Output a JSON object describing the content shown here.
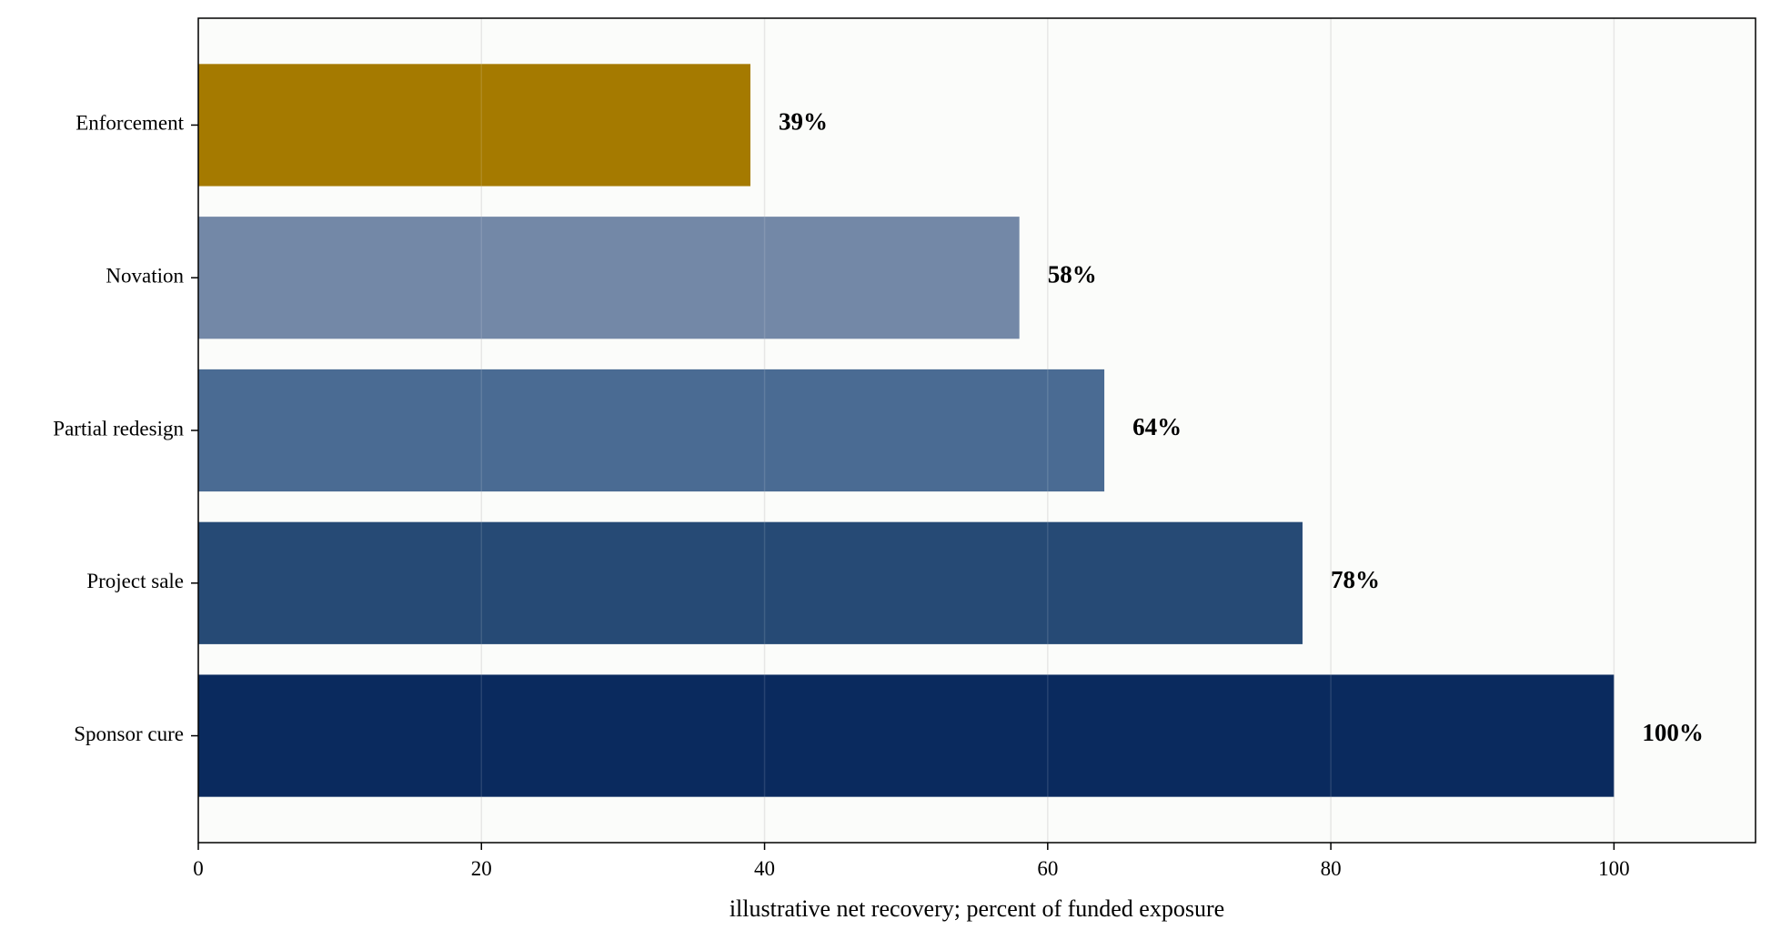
{
  "chart_data": {
    "type": "bar",
    "orientation": "horizontal",
    "categories": [
      "Enforcement",
      "Novation",
      "Partial redesign",
      "Project sale",
      "Sponsor cure"
    ],
    "values": [
      39,
      58,
      64,
      78,
      100
    ],
    "value_labels": [
      "39%",
      "58%",
      "64%",
      "78%",
      "100%"
    ],
    "colors": [
      "#a57a00",
      "#7388a7",
      "#4a6b93",
      "#264a75",
      "#0a2a5e"
    ],
    "xlabel": "illustrative net recovery; percent of funded exposure",
    "ylabel": "",
    "title": "",
    "xlim": [
      0,
      110
    ],
    "xticks": [
      0,
      20,
      40,
      60,
      80,
      100
    ],
    "xtick_labels": [
      "0",
      "20",
      "40",
      "60",
      "80",
      "100"
    ],
    "grid": "vertical",
    "legend": "none"
  }
}
